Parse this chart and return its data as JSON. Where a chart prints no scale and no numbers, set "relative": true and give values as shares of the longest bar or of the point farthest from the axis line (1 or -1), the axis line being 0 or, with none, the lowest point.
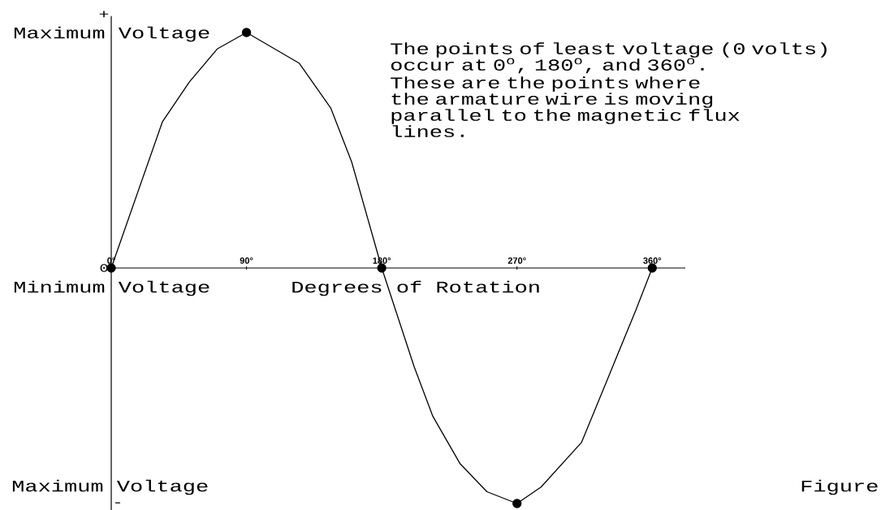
{
  "chart_data": {
    "type": "line",
    "relative": true,
    "xlim": [
      0,
      382
    ],
    "tick_labels": "x",
    "xlabel": "Degrees of Rotation",
    "xticks": [
      {
        "value": 0,
        "label": "0°"
      },
      {
        "value": 90,
        "label": "90°"
      },
      {
        "value": 180,
        "label": "180°"
      },
      {
        "value": 270,
        "label": "270°"
      },
      {
        "value": 360,
        "label": "360°"
      }
    ],
    "annotations": [
      "Maximum Voltage",
      "Minimum Voltage",
      "Maximum Voltage",
      "+",
      "-",
      "0",
      "The points of least voltage (0 volts) occur at 0$^{o}$, 180$^{o}$, and 360$^{o}$.",
      "These are the points where the armature wire is moving parallel to the magnetic flux lines.",
      "Figure"
    ],
    "series": [
      {
        "color": "#000000",
        "x": [
          0,
          34,
          52,
          70.5,
          90,
          125,
          146,
          160,
          180,
          201.6,
          214,
          232,
          250,
          270,
          286,
          313,
          331,
          349,
          360
        ],
        "values": [
          0,
          0.62,
          0.79,
          0.93,
          1,
          0.87,
          0.68,
          0.45,
          0,
          -0.42,
          -0.63,
          -0.83,
          -0.95,
          -1,
          -0.93,
          -0.74,
          -0.46,
          -0.18,
          0
        ]
      },
      {
        "type": "scatter",
        "color": "#000000",
        "marker": "circle",
        "x": [
          0,
          90,
          180,
          270,
          360
        ],
        "values": [
          0,
          1,
          0,
          -1,
          0
        ]
      }
    ]
  }
}
